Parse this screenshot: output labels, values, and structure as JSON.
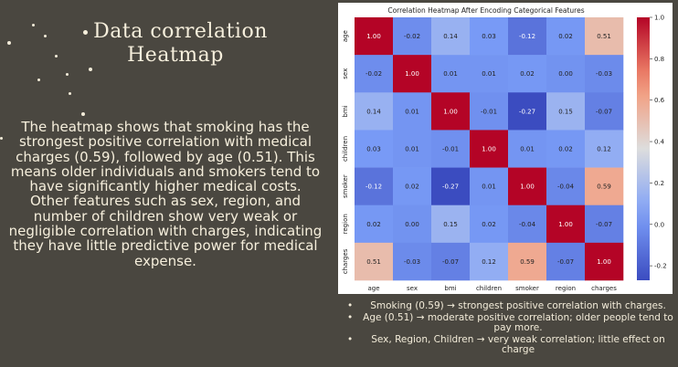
{
  "slide": {
    "title_line1": "Data correlation",
    "title_line2": "Heatmap",
    "body_paragraph1": "The heatmap shows that smoking has the strongest positive correlation with medical charges (0.59), followed by age (0.51). This means older individuals and smokers tend to have significantly higher medical costs.",
    "body_paragraph2": "Other features such as sex, region, and number of children show very weak or negligible correlation with charges, indicating they have little predictive power for medical expense.",
    "bullets": [
      "Smoking (0.59) → strongest positive correlation with charges.",
      "Age (0.51) → moderate positive correlation; older people tend to pay more.",
      "Sex, Region, Children → very weak correlation; little effect on charge"
    ]
  },
  "chart_data": {
    "type": "heatmap",
    "title": "Correlation Heatmap After Encoding Categorical Features",
    "xlabel": "",
    "ylabel": "",
    "labels": [
      "age",
      "sex",
      "bmi",
      "children",
      "smoker",
      "region",
      "charges"
    ],
    "matrix": [
      [
        1.0,
        -0.02,
        0.14,
        0.03,
        -0.12,
        0.02,
        0.51
      ],
      [
        -0.02,
        1.0,
        0.01,
        0.01,
        0.02,
        0.0,
        -0.03
      ],
      [
        0.14,
        0.01,
        1.0,
        -0.01,
        -0.27,
        0.15,
        -0.07
      ],
      [
        0.03,
        0.01,
        -0.01,
        1.0,
        0.01,
        0.02,
        0.12
      ],
      [
        -0.12,
        0.02,
        -0.27,
        0.01,
        1.0,
        -0.04,
        0.59
      ],
      [
        0.02,
        0.0,
        0.15,
        0.02,
        -0.04,
        1.0,
        -0.07
      ],
      [
        0.51,
        -0.03,
        -0.07,
        0.12,
        0.59,
        -0.07,
        1.0
      ]
    ],
    "colormap": "coolwarm",
    "vmin": -0.27,
    "vmax": 1.0,
    "colorbar_ticks": [
      -0.2,
      0.0,
      0.2,
      0.4,
      0.6,
      0.8,
      1.0
    ],
    "annotate": true
  }
}
